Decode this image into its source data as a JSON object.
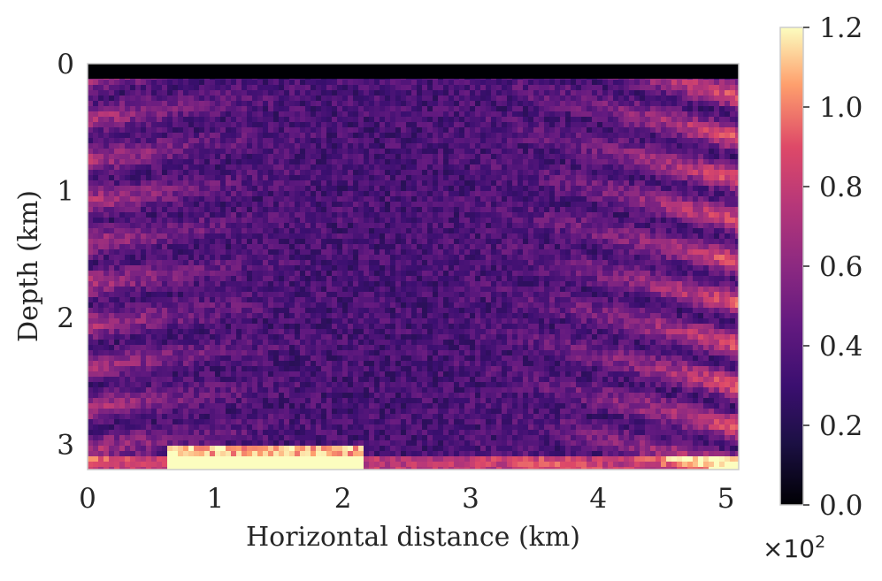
{
  "chart_data": {
    "type": "heatmap",
    "title": "",
    "xlabel": "Horizontal distance (km)",
    "ylabel": "Depth (km)",
    "xlim": [
      0,
      5.1
    ],
    "ylim": [
      3.2,
      0
    ],
    "x_ticks": [
      "0",
      "1",
      "2",
      "3",
      "4",
      "5"
    ],
    "x_tick_values": [
      0,
      1,
      2,
      3,
      4,
      5
    ],
    "y_ticks": [
      "0",
      "1",
      "2",
      "3"
    ],
    "y_tick_values": [
      0,
      1,
      2,
      3
    ],
    "colormap": "magma",
    "colorbar": {
      "range": [
        0.0,
        1.2
      ],
      "ticks": [
        "0.0",
        "0.2",
        "0.4",
        "0.6",
        "0.8",
        "1.0",
        "1.2"
      ],
      "tick_values": [
        0.0,
        0.2,
        0.4,
        0.6,
        0.8,
        1.0,
        1.2
      ],
      "multiplier": "×10",
      "multiplier_exponent": "2"
    },
    "grid": false,
    "colors": {
      "low": "#000004",
      "mid": "#721f81",
      "high": "#fcfdbf",
      "axis_frame": "#cccccc"
    }
  }
}
